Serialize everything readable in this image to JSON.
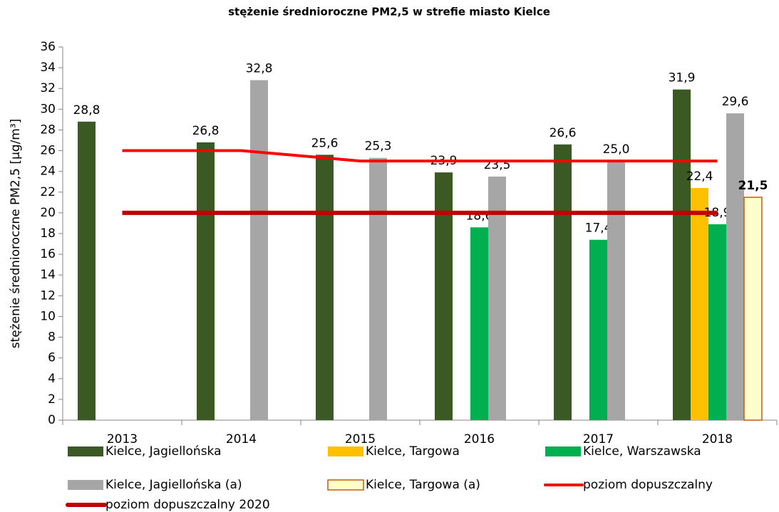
{
  "chart_data": {
    "type": "bar",
    "title": "stężenie średnioroczne PM2,5 w strefie miasto Kielce",
    "y_label": "stężenie średnioroczne PM2,5 [µg/m³]",
    "categories": [
      "2013",
      "2014",
      "2015",
      "2016",
      "2017",
      "2018"
    ],
    "ylim": [
      0,
      36
    ],
    "yticks": [
      0,
      2,
      4,
      6,
      8,
      10,
      12,
      14,
      16,
      18,
      20,
      22,
      24,
      26,
      28,
      30,
      32,
      34,
      36
    ],
    "grid": false,
    "legend": "bottom",
    "series": [
      {
        "name": "Kielce, Jagiellońska",
        "type": "bar",
        "color": "#3b5a23",
        "values": [
          28.8,
          26.8,
          25.6,
          23.9,
          26.6,
          31.9
        ],
        "value_labels": [
          "28,8",
          "26,8",
          "25,6",
          "23,9",
          "26,6",
          "31,9"
        ]
      },
      {
        "name": "Kielce, Targowa",
        "type": "bar",
        "color": "#ffc000",
        "values": [
          null,
          null,
          null,
          null,
          null,
          22.4
        ],
        "value_labels": [
          null,
          null,
          null,
          null,
          null,
          "22,4"
        ]
      },
      {
        "name": "Kielce, Warszawska",
        "type": "bar",
        "color": "#00b050",
        "values": [
          null,
          null,
          null,
          18.6,
          17.4,
          18.9
        ],
        "value_labels": [
          null,
          null,
          null,
          "18,6",
          "17,4",
          "18,9"
        ]
      },
      {
        "name": "Kielce, Jagiellońska (a)",
        "type": "bar",
        "color": "#a6a6a6",
        "values": [
          null,
          32.8,
          25.3,
          23.5,
          25.0,
          29.6
        ],
        "value_labels": [
          null,
          "32,8",
          "25,3",
          "23,5",
          "25,0",
          "29,6"
        ]
      },
      {
        "name": "Kielce, Targowa (a)",
        "type": "bar",
        "color": "#ffffcc",
        "edgecolor": "#c55a11",
        "label_bold": true,
        "values": [
          null,
          null,
          null,
          null,
          null,
          21.5
        ],
        "value_labels": [
          null,
          null,
          null,
          null,
          null,
          "21,5"
        ]
      },
      {
        "name": "poziom dopuszczalny",
        "type": "line",
        "color": "#ff0000",
        "values": [
          26,
          26,
          25,
          25,
          25,
          25
        ]
      },
      {
        "name": "poziom dopuszczalny 2020",
        "type": "line",
        "color": "#c00000",
        "values": [
          20,
          20,
          20,
          20,
          20,
          20
        ]
      }
    ]
  }
}
